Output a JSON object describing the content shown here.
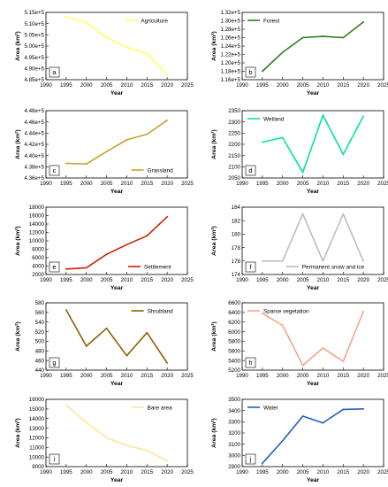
{
  "chart_data": [
    {
      "type": "line",
      "panel": "a",
      "title": "",
      "xlabel": "Year",
      "ylabel": "Area (km²)",
      "x": [
        1995,
        2000,
        2005,
        2010,
        2015,
        2020
      ],
      "series": [
        {
          "name": "Agriculture",
          "values": [
            513000,
            510500,
            503800,
            499500,
            496700,
            487000
          ]
        }
      ],
      "xlim": [
        1990,
        2025
      ],
      "ylim": [
        485000,
        515000
      ],
      "xticks": [
        "1990",
        "1995",
        "2000",
        "2005",
        "2010",
        "2015",
        "2020",
        "2025"
      ],
      "yticks": [
        "4.85e+5",
        "4.90e+5",
        "4.95e+5",
        "5.00e+5",
        "5.05e+5",
        "5.10e+5",
        "5.15e+5"
      ],
      "ytickvals": [
        485000,
        490000,
        495000,
        500000,
        505000,
        510000,
        515000
      ],
      "color": "#ffff66",
      "legend": "top-right",
      "label": "a"
    },
    {
      "type": "line",
      "panel": "b",
      "title": "",
      "xlabel": "Year",
      "ylabel": "Area (km²)",
      "x": [
        1995,
        2000,
        2005,
        2010,
        2015,
        2020
      ],
      "series": [
        {
          "name": "Forest",
          "values": [
            118000,
            122500,
            126000,
            126300,
            126000,
            129700
          ]
        }
      ],
      "xlim": [
        1990,
        2025
      ],
      "ylim": [
        116000,
        132000
      ],
      "xticks": [
        "1990",
        "1995",
        "2000",
        "2005",
        "2010",
        "2015",
        "2020",
        "2025"
      ],
      "yticks": [
        "1.16e+5",
        "1.18e+5",
        "1.20e+5",
        "1.22e+5",
        "1.24e+5",
        "1.26e+5",
        "1.28e+5",
        "1.30e+5",
        "1.32e+5"
      ],
      "ytickvals": [
        116000,
        118000,
        120000,
        122000,
        124000,
        126000,
        128000,
        130000,
        132000
      ],
      "color": "#2e7d1e",
      "legend": "top-left",
      "label": "b"
    },
    {
      "type": "line",
      "panel": "c",
      "title": "",
      "xlabel": "Year",
      "ylabel": "Area (km²)",
      "x": [
        1995,
        2000,
        2005,
        2010,
        2015,
        2020
      ],
      "series": [
        {
          "name": "Grassland",
          "values": [
            438600,
            438500,
            440700,
            442800,
            443800,
            446300
          ]
        }
      ],
      "xlim": [
        1990,
        2025
      ],
      "ylim": [
        436000,
        448000
      ],
      "xticks": [
        "1990",
        "1995",
        "2000",
        "2005",
        "2010",
        "2015",
        "2020",
        "2025"
      ],
      "yticks": [
        "4.36e+5",
        "4.38e+5",
        "4.40e+5",
        "4.42e+5",
        "4.44e+5",
        "4.46e+5",
        "4.48e+5"
      ],
      "ytickvals": [
        436000,
        438000,
        440000,
        442000,
        444000,
        446000,
        448000
      ],
      "color": "#c9a227",
      "legend": "bottom-right",
      "label": "c"
    },
    {
      "type": "line",
      "panel": "d",
      "title": "",
      "xlabel": "Year",
      "ylabel": "Area (km²)",
      "x": [
        1995,
        2000,
        2005,
        2010,
        2015,
        2020
      ],
      "series": [
        {
          "name": "Wetland",
          "values": [
            2210,
            2230,
            2075,
            2330,
            2155,
            2325
          ]
        }
      ],
      "xlim": [
        1990,
        2025
      ],
      "ylim": [
        2050,
        2350
      ],
      "xticks": [
        "1990",
        "1995",
        "2000",
        "2005",
        "2010",
        "2015",
        "2020",
        "2025"
      ],
      "yticks": [
        "2050",
        "2100",
        "2150",
        "2200",
        "2250",
        "2300",
        "2350"
      ],
      "ytickvals": [
        2050,
        2100,
        2150,
        2200,
        2250,
        2300,
        2350
      ],
      "color": "#00e5a0",
      "legend": "top-left",
      "label": "d"
    },
    {
      "type": "line",
      "panel": "e",
      "title": "",
      "xlabel": "Year",
      "ylabel": "Area (km²)",
      "x": [
        1995,
        2000,
        2005,
        2010,
        2015,
        2020
      ],
      "series": [
        {
          "name": "Settlement",
          "values": [
            3300,
            3600,
            6800,
            9100,
            11200,
            15700
          ]
        }
      ],
      "xlim": [
        1990,
        2025
      ],
      "ylim": [
        2000,
        18000
      ],
      "xticks": [
        "1990",
        "1995",
        "2000",
        "2005",
        "2010",
        "2015",
        "2020",
        "2025"
      ],
      "yticks": [
        "2000",
        "4000",
        "6000",
        "8000",
        "10000",
        "12000",
        "14000",
        "16000",
        "18000"
      ],
      "ytickvals": [
        2000,
        4000,
        6000,
        8000,
        10000,
        12000,
        14000,
        16000,
        18000
      ],
      "color": "#cc2200",
      "legend": "bottom-right",
      "label": "e"
    },
    {
      "type": "line",
      "panel": "f",
      "title": "",
      "xlabel": "Year",
      "ylabel": "Area (km²)",
      "x": [
        1995,
        2000,
        2005,
        2010,
        2015,
        2020
      ],
      "series": [
        {
          "name": "Permanent snow and ice",
          "values": [
            176,
            176,
            183,
            176,
            183,
            176
          ]
        }
      ],
      "xlim": [
        1990,
        2025
      ],
      "ylim": [
        174,
        184
      ],
      "xticks": [
        "1990",
        "1995",
        "2000",
        "2005",
        "2010",
        "2015",
        "2020",
        "2025"
      ],
      "yticks": [
        "174",
        "176",
        "178",
        "180",
        "182",
        "184"
      ],
      "ytickvals": [
        174,
        176,
        178,
        180,
        182,
        184
      ],
      "color": "#bdbdbd",
      "legend": "bottom-right",
      "label": "f"
    },
    {
      "type": "line",
      "panel": "g",
      "title": "",
      "xlabel": "Year",
      "ylabel": "Area (km²)",
      "x": [
        1995,
        2000,
        2005,
        2010,
        2015,
        2020
      ],
      "series": [
        {
          "name": "Shrubland",
          "values": [
            565,
            490,
            527,
            470,
            518,
            455
          ]
        }
      ],
      "xlim": [
        1990,
        2025
      ],
      "ylim": [
        440,
        580
      ],
      "xticks": [
        "1990",
        "1995",
        "2000",
        "2005",
        "2010",
        "2015",
        "2020",
        "2025"
      ],
      "yticks": [
        "440",
        "460",
        "480",
        "500",
        "520",
        "540",
        "560",
        "580"
      ],
      "ytickvals": [
        440,
        460,
        480,
        500,
        520,
        540,
        560,
        580
      ],
      "color": "#8b6000",
      "legend": "top-right",
      "label": "g"
    },
    {
      "type": "line",
      "panel": "h",
      "title": "",
      "xlabel": "Year",
      "ylabel": "Area (km²)",
      "x": [
        1995,
        2000,
        2005,
        2010,
        2015,
        2020
      ],
      "series": [
        {
          "name": "Sparse vegetation",
          "values": [
            6380,
            6130,
            5300,
            5660,
            5380,
            6420
          ]
        }
      ],
      "xlim": [
        1990,
        2025
      ],
      "ylim": [
        5200,
        6600
      ],
      "xticks": [
        "1990",
        "1995",
        "2000",
        "2005",
        "2010",
        "2015",
        "2020",
        "2025"
      ],
      "yticks": [
        "5200",
        "5400",
        "5600",
        "5800",
        "6000",
        "6200",
        "6400",
        "6600"
      ],
      "ytickvals": [
        5200,
        5400,
        5600,
        5800,
        6000,
        6200,
        6400,
        6600
      ],
      "color": "#f4a58a",
      "legend": "top-left",
      "label": "h"
    },
    {
      "type": "line",
      "panel": "i",
      "title": "",
      "xlabel": "Year",
      "ylabel": "Area (km²)",
      "x": [
        1995,
        2000,
        2005,
        2010,
        2015,
        2020
      ],
      "series": [
        {
          "name": "Bare area",
          "values": [
            15400,
            13600,
            12000,
            11200,
            10700,
            9600
          ]
        }
      ],
      "xlim": [
        1990,
        2025
      ],
      "ylim": [
        9000,
        16000
      ],
      "xticks": [
        "1990",
        "1995",
        "2000",
        "2005",
        "2010",
        "2015",
        "2020",
        "2025"
      ],
      "yticks": [
        "9000",
        "10000",
        "11000",
        "12000",
        "13000",
        "14000",
        "15000",
        "16000"
      ],
      "ytickvals": [
        9000,
        10000,
        11000,
        12000,
        13000,
        14000,
        15000,
        16000
      ],
      "color": "#ffe599",
      "legend": "top-right",
      "label": "i"
    },
    {
      "type": "line",
      "panel": "j",
      "title": "",
      "xlabel": "Year",
      "ylabel": "Area (km²)",
      "x": [
        1995,
        2000,
        2005,
        2010,
        2015,
        2020
      ],
      "series": [
        {
          "name": "Water",
          "values": [
            2930,
            3130,
            3350,
            3290,
            3410,
            3415
          ]
        }
      ],
      "xlim": [
        1990,
        2025
      ],
      "ylim": [
        2900,
        3500
      ],
      "xticks": [
        "1990",
        "1995",
        "2000",
        "2005",
        "2010",
        "2015",
        "2020",
        "2025"
      ],
      "yticks": [
        "2900",
        "3000",
        "3100",
        "3200",
        "3300",
        "3400",
        "3500"
      ],
      "ytickvals": [
        2900,
        3000,
        3100,
        3200,
        3300,
        3400,
        3500
      ],
      "color": "#1f5fbf",
      "legend": "top-left",
      "label": "j"
    }
  ]
}
